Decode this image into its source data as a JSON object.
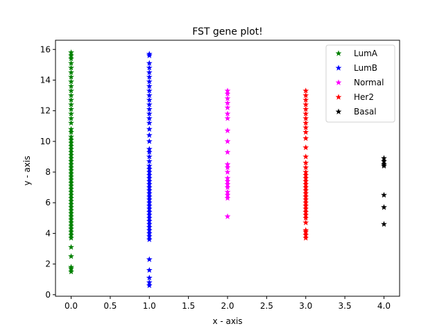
{
  "chart_data": {
    "type": "scatter",
    "title": "FST gene plot!",
    "xlabel": "x - axis",
    "ylabel": "y - axis",
    "xlim": [
      -0.2,
      4.2
    ],
    "ylim": [
      -0.1,
      16.6
    ],
    "xticks": [
      0.0,
      0.5,
      1.0,
      1.5,
      2.0,
      2.5,
      3.0,
      3.5,
      4.0
    ],
    "xtick_labels": [
      "0.0",
      "0.5",
      "1.0",
      "1.5",
      "2.0",
      "2.5",
      "3.0",
      "3.5",
      "4.0"
    ],
    "yticks": [
      0,
      2,
      4,
      6,
      8,
      10,
      12,
      14,
      16
    ],
    "ytick_labels": [
      "0",
      "2",
      "4",
      "6",
      "8",
      "10",
      "12",
      "14",
      "16"
    ],
    "grid": false,
    "legend_position": "top-right",
    "marker": "star",
    "series": [
      {
        "name": "LumA",
        "color": "#008000",
        "x": 0,
        "y": [
          1.5,
          1.7,
          1.8,
          2.5,
          3.1,
          3.7,
          3.9,
          4.1,
          4.3,
          4.5,
          4.7,
          4.9,
          5.1,
          5.3,
          5.5,
          5.7,
          5.9,
          6.1,
          6.3,
          6.5,
          6.7,
          6.9,
          7.1,
          7.3,
          7.5,
          7.7,
          7.9,
          8.1,
          8.3,
          8.5,
          8.7,
          8.9,
          9.1,
          9.3,
          9.5,
          9.7,
          9.9,
          10.1,
          10.3,
          10.6,
          10.8,
          11.2,
          11.5,
          11.8,
          12.1,
          12.4,
          12.7,
          13.0,
          13.3,
          13.6,
          13.9,
          14.2,
          14.5,
          14.8,
          15.1,
          15.4,
          15.6,
          15.8
        ]
      },
      {
        "name": "LumB",
        "color": "#0000ff",
        "x": 1,
        "y": [
          0.6,
          0.8,
          1.1,
          1.6,
          2.3,
          3.6,
          3.8,
          4.0,
          4.2,
          4.4,
          4.6,
          4.8,
          5.0,
          5.2,
          5.4,
          5.6,
          5.8,
          6.0,
          6.2,
          6.4,
          6.6,
          6.8,
          7.0,
          7.2,
          7.4,
          7.6,
          7.8,
          8.0,
          8.2,
          8.4,
          8.7,
          9.0,
          9.3,
          9.5,
          10.0,
          10.4,
          10.8,
          11.2,
          11.5,
          11.8,
          12.1,
          12.4,
          12.7,
          13.0,
          13.3,
          13.6,
          13.9,
          14.2,
          14.5,
          14.8,
          15.1,
          15.6,
          15.7
        ]
      },
      {
        "name": "Normal",
        "color": "#ff00ff",
        "x": 2,
        "y": [
          5.1,
          6.3,
          6.5,
          6.7,
          7.0,
          7.2,
          7.4,
          7.6,
          8.0,
          8.3,
          8.5,
          9.3,
          10.0,
          10.7,
          11.5,
          11.8,
          12.2,
          12.5,
          12.8,
          13.1,
          13.3
        ]
      },
      {
        "name": "Her2",
        "color": "#ff0000",
        "x": 3,
        "y": [
          3.7,
          3.9,
          4.1,
          4.2,
          4.7,
          5.0,
          5.2,
          5.4,
          5.6,
          5.8,
          6.0,
          6.2,
          6.4,
          6.6,
          6.8,
          7.0,
          7.2,
          7.4,
          7.6,
          7.8,
          8.0,
          8.3,
          8.6,
          9.0,
          9.6,
          10.2,
          10.6,
          10.9,
          11.2,
          11.5,
          11.8,
          12.1,
          12.4,
          12.7,
          13.0,
          13.3
        ]
      },
      {
        "name": "Basal",
        "color": "#000000",
        "x": 4,
        "y": [
          4.6,
          5.7,
          6.5,
          8.4,
          8.5,
          8.7,
          8.9
        ]
      }
    ]
  }
}
